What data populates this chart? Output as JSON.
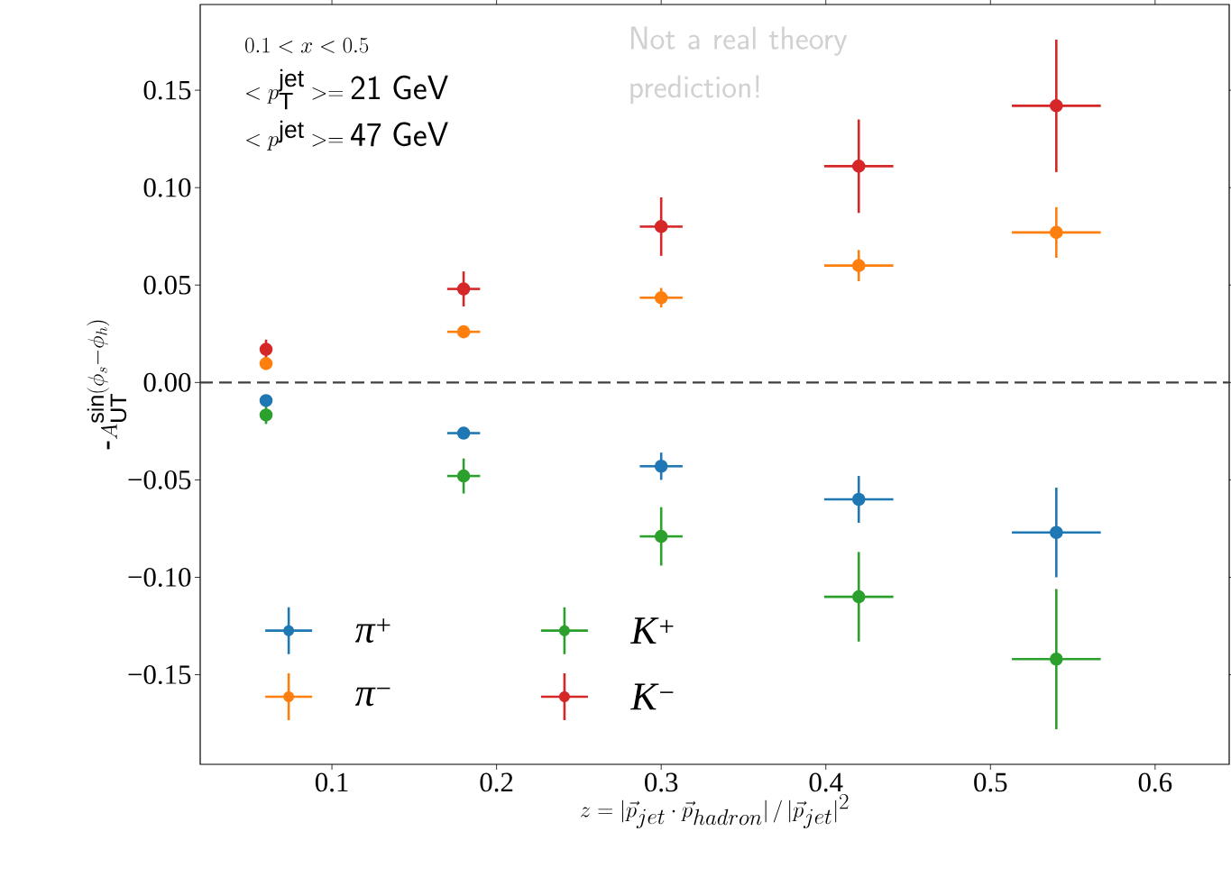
{
  "chart_data": {
    "type": "scatter",
    "xlabel": "z = |\\vec{p}_{jet} \\cdot \\vec{p}_{hadron}| \\,/\\, |\\vec{p}_{jet}|^2",
    "ylabel": "\\mbox{-}A_{\\mathrm{UT}}^{\\sin(\\phi_s-\\phi_h)}",
    "x": [
      0.06,
      0.18,
      0.3,
      0.42,
      0.54
    ],
    "xlim": [
      0.02,
      0.645
    ],
    "ylim": [
      -0.196,
      0.194
    ],
    "xticks": [
      0.1,
      0.2,
      0.3,
      0.4,
      0.5,
      0.6
    ],
    "yticks": [
      {
        "value": -0.15,
        "label": "−0.15"
      },
      {
        "value": -0.1,
        "label": "−0.10"
      },
      {
        "value": -0.05,
        "label": "−0.05"
      },
      {
        "value": 0,
        "label": "0.00"
      },
      {
        "value": 0.05,
        "label": "0.05"
      },
      {
        "value": 0.1,
        "label": "0.10"
      },
      {
        "value": 0.15,
        "label": "0.15"
      }
    ],
    "marker": "circle",
    "grid": false,
    "legend": "bottom left",
    "series": [
      {
        "name": "*π*$^{+}$",
        "color": "#1f77b4",
        "values": [
          -0.0093,
          -0.026,
          -0.043,
          -0.06,
          -0.077
        ],
        "errors": [
          0.003,
          0.002,
          0.007,
          0.012,
          0.023
        ],
        "xerrors": [
          null,
          0.01,
          0.013,
          0.021,
          0.027
        ]
      },
      {
        "name": "*π*$^{−}$",
        "color": "#ff7f0e",
        "values": [
          0.0097,
          0.026,
          0.0435,
          0.06,
          0.077
        ],
        "errors": [
          0.002,
          0.002,
          0.005,
          0.008,
          0.013
        ],
        "xerrors": [
          null,
          0.01,
          0.013,
          0.021,
          0.027
        ]
      },
      {
        "name": "*K*$^{+}$",
        "color": "#2ca02c",
        "values": [
          -0.0167,
          -0.048,
          -0.079,
          -0.11,
          -0.142
        ],
        "errors": [
          0.0046,
          0.009,
          0.015,
          0.023,
          0.036
        ],
        "xerrors": [
          null,
          0.01,
          0.013,
          0.021,
          0.027
        ]
      },
      {
        "name": "*K*$^{−}$",
        "color": "#d62728",
        "values": [
          0.017,
          0.048,
          0.08,
          0.111,
          0.142
        ],
        "errors": [
          0.005,
          0.009,
          0.015,
          0.024,
          0.034
        ],
        "xerrors": [
          null,
          0.01,
          0.013,
          0.021,
          0.027
        ]
      }
    ],
    "ref_lines": [
      {
        "axis": "y",
        "value": 0,
        "color": "#404040",
        "line_style": "dashed"
      }
    ],
    "annotations": [
      "0.1 < x < 0.5",
      "< p_{\\mathrm{T}}^{\\mathrm{jet}} >= \\mathsf{21\\ GeV}",
      "< p^{\\mathrm{jet}} >= \\mathsf{47\\ GeV}",
      "Not a real theory prediction!"
    ]
  }
}
